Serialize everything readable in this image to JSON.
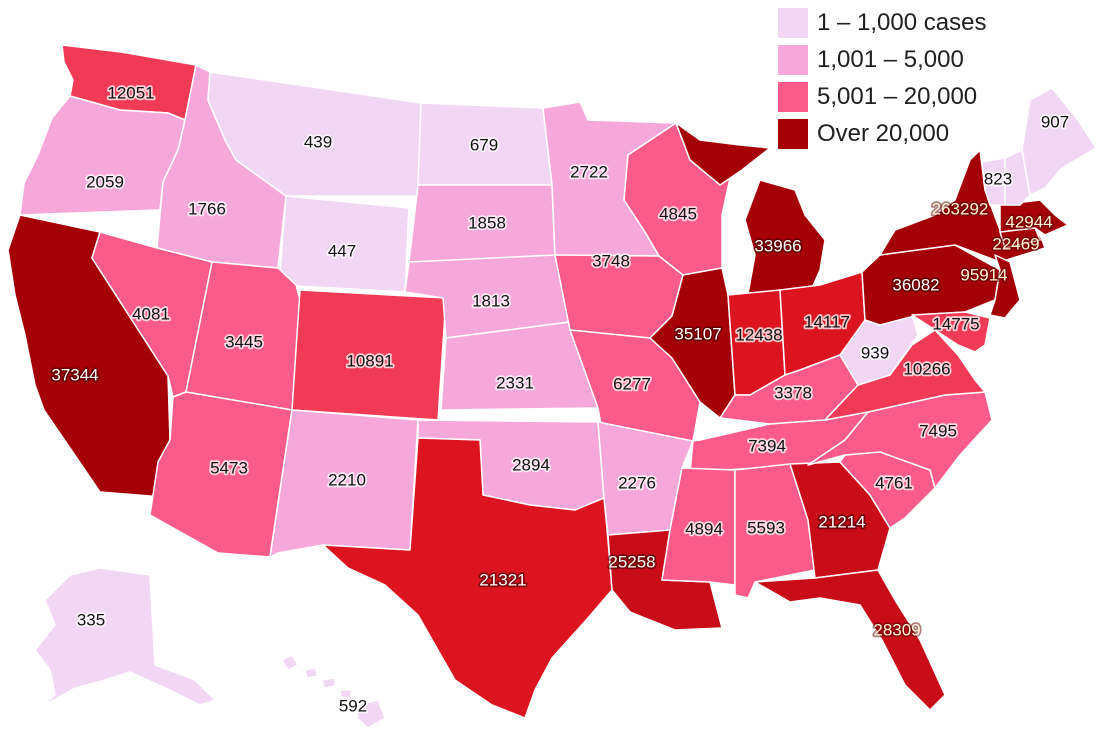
{
  "legend": {
    "items": [
      {
        "label": "1 – 1,000 cases",
        "color": "#f2d7f5"
      },
      {
        "label": "1,001 – 5,000",
        "color": "#f7a8da"
      },
      {
        "label": "5,001 – 20,000",
        "color": "#fa5b8a"
      },
      {
        "label": "Over 20,000",
        "color": "#a50006"
      }
    ]
  },
  "colors": {
    "tier1": "#f2d7f5",
    "tier2": "#f7a8da",
    "tier3a": "#fa5b8a",
    "tier3b": "#f13a55",
    "tier4a": "#dc1420",
    "tier4b": "#c80c18",
    "tier4c": "#a50006"
  },
  "states": [
    {
      "id": "WA",
      "cases": "12051"
    },
    {
      "id": "OR",
      "cases": "2059"
    },
    {
      "id": "CA",
      "cases": "37344"
    },
    {
      "id": "ID",
      "cases": "1766"
    },
    {
      "id": "NV",
      "cases": "4081"
    },
    {
      "id": "MT",
      "cases": "439"
    },
    {
      "id": "WY",
      "cases": "447"
    },
    {
      "id": "UT",
      "cases": "3445"
    },
    {
      "id": "CO",
      "cases": "10891"
    },
    {
      "id": "AZ",
      "cases": "5473"
    },
    {
      "id": "NM",
      "cases": "2210"
    },
    {
      "id": "ND",
      "cases": "679"
    },
    {
      "id": "SD",
      "cases": "1858"
    },
    {
      "id": "NE",
      "cases": "1813"
    },
    {
      "id": "KS",
      "cases": "2331"
    },
    {
      "id": "OK",
      "cases": "2894"
    },
    {
      "id": "TX",
      "cases": "21321"
    },
    {
      "id": "MN",
      "cases": "2722"
    },
    {
      "id": "IA",
      "cases": "3748"
    },
    {
      "id": "MO",
      "cases": "6277"
    },
    {
      "id": "AR",
      "cases": "2276"
    },
    {
      "id": "LA",
      "cases": "25258"
    },
    {
      "id": "WI",
      "cases": "4845"
    },
    {
      "id": "IL",
      "cases": "35107"
    },
    {
      "id": "MI",
      "cases": "33966"
    },
    {
      "id": "IN",
      "cases": "12438"
    },
    {
      "id": "OH",
      "cases": "14117"
    },
    {
      "id": "KY",
      "cases": "3378"
    },
    {
      "id": "TN",
      "cases": "7394"
    },
    {
      "id": "MS",
      "cases": "4894"
    },
    {
      "id": "AL",
      "cases": "5593"
    },
    {
      "id": "GA",
      "cases": "21214"
    },
    {
      "id": "FL",
      "cases": "28309"
    },
    {
      "id": "SC",
      "cases": "4761"
    },
    {
      "id": "NC",
      "cases": "7495"
    },
    {
      "id": "VA",
      "cases": "10266"
    },
    {
      "id": "WV",
      "cases": "939"
    },
    {
      "id": "PA",
      "cases": "36082"
    },
    {
      "id": "NY",
      "cases": "263292"
    },
    {
      "id": "NJ",
      "cases": "95914"
    },
    {
      "id": "MD",
      "cases": "14775"
    },
    {
      "id": "CT",
      "cases": "22469"
    },
    {
      "id": "MA",
      "cases": "42944"
    },
    {
      "id": "VT",
      "cases": "823"
    },
    {
      "id": "ME",
      "cases": "907"
    },
    {
      "id": "AK",
      "cases": "335"
    },
    {
      "id": "HI",
      "cases": "592"
    }
  ]
}
